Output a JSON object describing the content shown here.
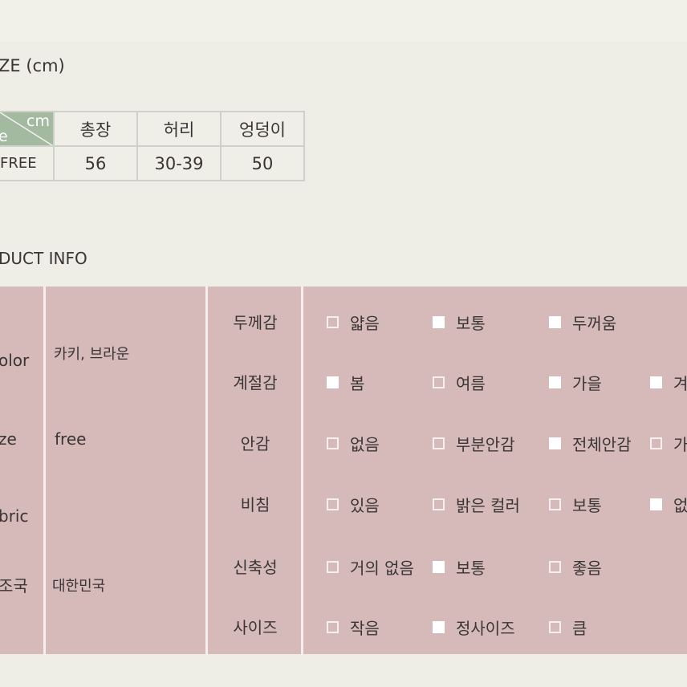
{
  "size_section": {
    "heading": "ZE (cm)",
    "corner_unit": "cm",
    "corner_label": "e",
    "corner_color": "#a3b9a0",
    "columns": [
      "총장",
      "허리",
      "엉덩이"
    ],
    "row": {
      "label": "FREE",
      "values": [
        "56",
        "30-39",
        "50"
      ]
    }
  },
  "product_info": {
    "heading": "DUCT INFO",
    "background_color": "#d5bab9",
    "basics": [
      {
        "label": "olor",
        "value": "카키, 브라운"
      },
      {
        "label": "ze",
        "value": "free"
      },
      {
        "label": "bric",
        "value": ""
      },
      {
        "label": "조국",
        "value": "대한민국"
      }
    ],
    "attributes": [
      {
        "name": "두께감",
        "options": [
          {
            "text": "얇음",
            "checked": false
          },
          {
            "text": "보통",
            "checked": true
          },
          {
            "text": "두꺼움",
            "checked": true
          }
        ]
      },
      {
        "name": "계절감",
        "options": [
          {
            "text": "봄",
            "checked": true
          },
          {
            "text": "여름",
            "checked": false
          },
          {
            "text": "가을",
            "checked": true
          },
          {
            "text": "겨",
            "checked": true
          }
        ]
      },
      {
        "name": "안감",
        "options": [
          {
            "text": "없음",
            "checked": false
          },
          {
            "text": "부분안감",
            "checked": false
          },
          {
            "text": "전체안감",
            "checked": true
          },
          {
            "text": "가",
            "checked": false
          }
        ]
      },
      {
        "name": "비침",
        "options": [
          {
            "text": "있음",
            "checked": false
          },
          {
            "text": "밝은 컬러",
            "checked": false
          },
          {
            "text": "보통",
            "checked": false
          },
          {
            "text": "없",
            "checked": true
          }
        ]
      },
      {
        "name": "신축성",
        "options": [
          {
            "text": "거의 없음",
            "checked": false
          },
          {
            "text": "보통",
            "checked": true
          },
          {
            "text": "좋음",
            "checked": false
          }
        ]
      },
      {
        "name": "사이즈",
        "options": [
          {
            "text": "작음",
            "checked": false
          },
          {
            "text": "정사이즈",
            "checked": true
          },
          {
            "text": "큼",
            "checked": false
          }
        ]
      }
    ]
  }
}
